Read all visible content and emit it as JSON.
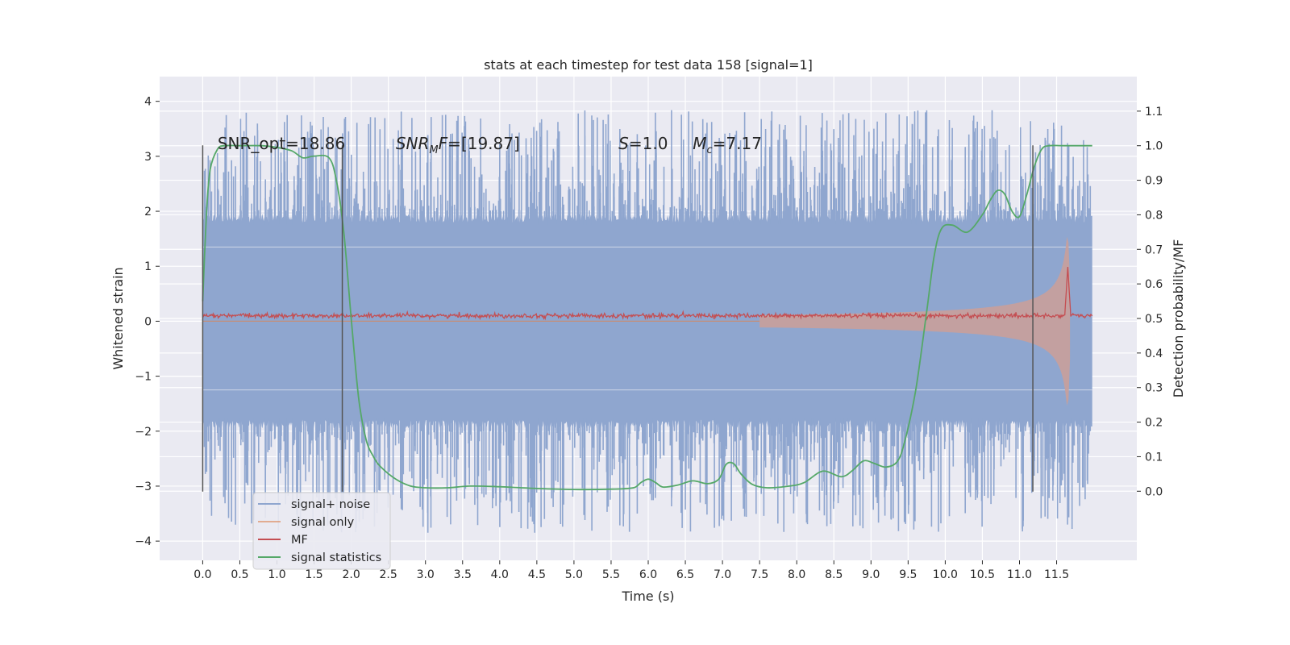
{
  "chart_data": {
    "type": "line",
    "title": "stats at each timestep for test data 158 [signal=1]",
    "xlabel": "Time (s)",
    "ylabel": "Whitened strain",
    "ylabel_right": "Detection probability/MF",
    "xlim": [
      -0.58,
      12.58
    ],
    "ylim": [
      -4.35,
      4.45
    ],
    "ylim_right": [
      -0.2,
      1.2
    ],
    "x_ticks": [
      0,
      0.5,
      1,
      1.5,
      2,
      2.5,
      3,
      3.5,
      4,
      4.5,
      5,
      5.5,
      6,
      6.5,
      7,
      7.5,
      8,
      8.5,
      9,
      9.5,
      10,
      10.5,
      11,
      11.5
    ],
    "x_tick_labels": [
      "0.0",
      "0.5",
      "1.0",
      "1.5",
      "2.0",
      "2.5",
      "3.0",
      "3.5",
      "4.0",
      "4.5",
      "5.0",
      "5.5",
      "6.0",
      "6.5",
      "7.0",
      "7.5",
      "8.0",
      "8.5",
      "9.0",
      "9.5",
      "10.0",
      "10.5",
      "11.0",
      "11.5"
    ],
    "y_ticks": [
      -4,
      -3,
      -2,
      -1,
      0,
      1,
      2,
      3,
      4
    ],
    "y_tick_labels": [
      "−4",
      "−3",
      "−2",
      "−1",
      "0",
      "1",
      "2",
      "3",
      "4"
    ],
    "y_right_ticks": [
      0,
      0.1,
      0.2,
      0.3,
      0.4,
      0.5,
      0.6,
      0.7,
      0.8,
      0.9,
      1.0,
      1.1
    ],
    "y_right_tick_labels": [
      "0.0",
      "0.1",
      "0.2",
      "0.3",
      "0.4",
      "0.5",
      "0.6",
      "0.7",
      "0.8",
      "0.9",
      "1.0",
      "1.1"
    ],
    "grid": true,
    "legend_placement": "lower-left",
    "annotations": [
      {
        "prefix": "SNR_opt=18.86",
        "x": 0.2
      },
      {
        "italic": "SNR",
        "sub": "M",
        "italic2": "F",
        "rest": "=[19.87]",
        "x": 2.6
      },
      {
        "italic": "S",
        "rest": "=1.0",
        "x": 5.6
      },
      {
        "italic": "M",
        "sub": "c",
        "rest": "=7.17",
        "x": 6.6
      }
    ],
    "annotation_y": 3.25,
    "series": [
      {
        "name": "signal+ noise",
        "axis": "left",
        "color": "#8fa6cf",
        "t_start": 0,
        "t_end": 11.98,
        "envelope": 1.95,
        "peaks_min": 2.0,
        "peaks_max": 3.85
      },
      {
        "name": "signal only",
        "axis": "left",
        "color": "#dd8452",
        "chirp_start": 7.5,
        "chirp_peak": 11.65,
        "peak_amp": 1.75,
        "fill_color": "#c9a09a"
      },
      {
        "name": "MF",
        "axis": "left",
        "color": "#c44e52",
        "baseline": 0.1,
        "noise": 0.04,
        "peak_x": 11.65,
        "peak_value": 1.0
      },
      {
        "name": "signal statistics",
        "axis": "right",
        "color": "#55a868",
        "x": [
          0,
          0.05,
          0.1,
          0.2,
          0.3,
          0.5,
          0.8,
          1.0,
          1.2,
          1.35,
          1.5,
          1.7,
          1.8,
          1.9,
          2.0,
          2.1,
          2.2,
          2.3,
          2.4,
          2.6,
          2.8,
          3.0,
          3.3,
          3.6,
          4.0,
          4.5,
          5.0,
          5.5,
          5.8,
          5.9,
          6.0,
          6.1,
          6.2,
          6.4,
          6.6,
          6.8,
          6.95,
          7.05,
          7.15,
          7.25,
          7.4,
          7.6,
          7.9,
          8.1,
          8.35,
          8.6,
          8.75,
          8.9,
          9.05,
          9.2,
          9.35,
          9.45,
          9.6,
          9.75,
          9.85,
          9.95,
          10.1,
          10.3,
          10.5,
          10.6,
          10.7,
          10.8,
          10.9,
          11.0,
          11.1,
          11.2,
          11.3,
          11.4,
          11.6,
          11.98
        ],
        "values": [
          0.55,
          0.8,
          0.93,
          0.99,
          1.0,
          1.0,
          1.0,
          0.995,
          0.985,
          0.965,
          0.97,
          0.965,
          0.9,
          0.75,
          0.5,
          0.27,
          0.15,
          0.1,
          0.07,
          0.035,
          0.015,
          0.01,
          0.01,
          0.015,
          0.013,
          0.008,
          0.005,
          0.006,
          0.01,
          0.025,
          0.035,
          0.025,
          0.012,
          0.018,
          0.03,
          0.022,
          0.035,
          0.078,
          0.08,
          0.05,
          0.02,
          0.01,
          0.015,
          0.025,
          0.058,
          0.042,
          0.06,
          0.088,
          0.08,
          0.07,
          0.085,
          0.14,
          0.29,
          0.52,
          0.68,
          0.76,
          0.77,
          0.75,
          0.8,
          0.84,
          0.87,
          0.86,
          0.81,
          0.795,
          0.86,
          0.94,
          0.99,
          1.0,
          1.0,
          1.0
        ]
      }
    ],
    "vertical_markers": [
      0,
      1.88,
      11.18
    ],
    "marker_range": [
      -3.1,
      3.2
    ]
  }
}
